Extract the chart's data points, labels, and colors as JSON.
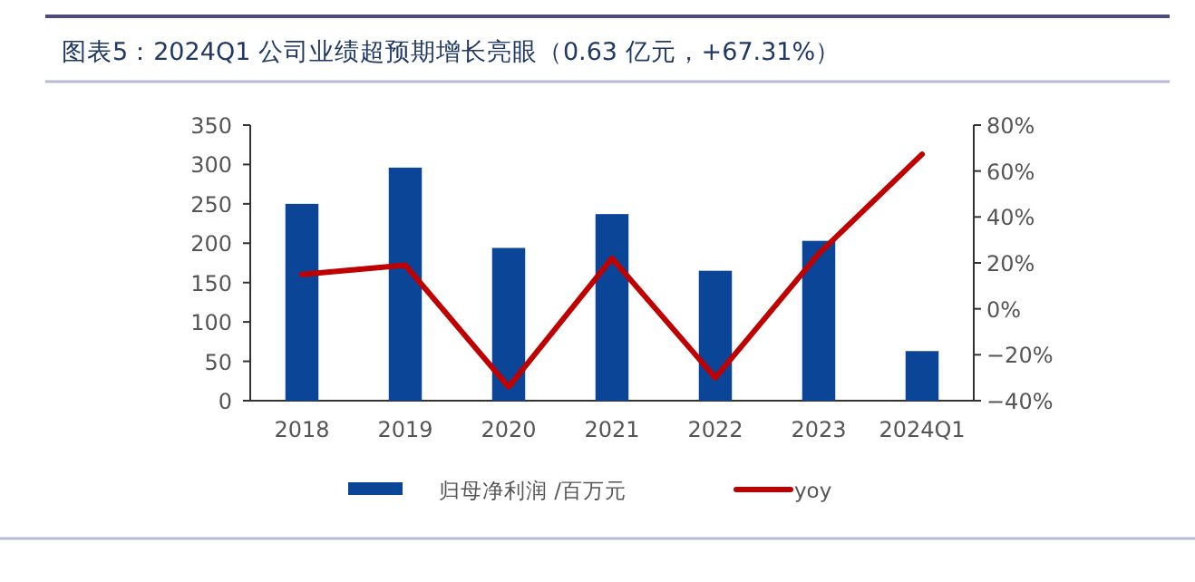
{
  "chart_data": {
    "type": "bar",
    "title": "图表5：2024Q1 公司业绩超预期增长亮眼（0.63 亿元，+67.31%）",
    "categories": [
      "2018",
      "2019",
      "2020",
      "2021",
      "2022",
      "2023",
      "2024Q1"
    ],
    "series": [
      {
        "name": "归母净利润 /百万元",
        "color": "#0a4597",
        "values": [
          250,
          296,
          194,
          237,
          165,
          203,
          63
        ]
      },
      {
        "name": "yoy",
        "type": "line",
        "axis": "y2",
        "color": "#c00000",
        "values": [
          15,
          19,
          -34,
          22,
          -30,
          24,
          67.31
        ]
      }
    ],
    "ylim": [
      0,
      350
    ],
    "yticks": [
      0,
      50,
      100,
      150,
      200,
      250,
      300,
      350
    ],
    "y2lim": [
      -40,
      80
    ],
    "y2ticks": [
      {
        "value": -40,
        "label": "−40%"
      },
      {
        "value": -20,
        "label": "−20%"
      },
      {
        "value": 0,
        "label": "0%"
      },
      {
        "value": 20,
        "label": "20%"
      },
      {
        "value": 40,
        "label": "40%"
      },
      {
        "value": 60,
        "label": "60%"
      },
      {
        "value": 80,
        "label": "80%"
      }
    ],
    "legend": "bottom",
    "grid": false,
    "marker": "none"
  }
}
